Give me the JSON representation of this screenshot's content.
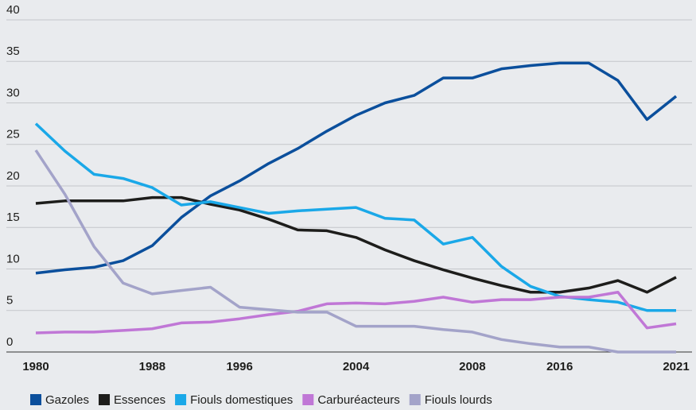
{
  "chart_data": {
    "type": "line",
    "categories": [
      "1980",
      null,
      null,
      null,
      "1988",
      null,
      null,
      "1996",
      null,
      null,
      null,
      "2004",
      null,
      null,
      null,
      "2008",
      null,
      null,
      "2016",
      null,
      null,
      null,
      "2021"
    ],
    "series": [
      {
        "name": "Gazoles",
        "color": "#0b4f9c",
        "values": [
          9.5,
          9.9,
          10.2,
          11,
          12.8,
          16.2,
          18.8,
          20.6,
          22.7,
          24.5,
          26.6,
          28.5,
          30,
          30.9,
          33,
          33,
          34.1,
          34.5,
          34.8,
          34.8,
          32.7,
          28,
          30.8
        ]
      },
      {
        "name": "Essences",
        "color": "#1d1d1b",
        "values": [
          17.9,
          18.2,
          18.2,
          18.2,
          18.6,
          18.6,
          17.8,
          17.1,
          16,
          14.7,
          14.6,
          13.8,
          12.3,
          11,
          9.9,
          8.9,
          8,
          7.2,
          7.2,
          7.7,
          8.6,
          7.2,
          9
        ]
      },
      {
        "name": "Fiouls domestiques",
        "color": "#1aa8e8",
        "values": [
          27.5,
          24.2,
          21.4,
          20.9,
          19.8,
          17.7,
          18.1,
          17.4,
          16.7,
          17,
          17.2,
          17.4,
          16.1,
          15.9,
          13,
          13.8,
          10.3,
          7.9,
          6.7,
          6.3,
          6,
          5,
          5
        ]
      },
      {
        "name": "Carburéacteurs",
        "color": "#c077d6",
        "values": [
          2.3,
          2.4,
          2.4,
          2.6,
          2.8,
          3.5,
          3.6,
          4,
          4.5,
          4.9,
          5.8,
          5.9,
          5.8,
          6.1,
          6.6,
          6,
          6.3,
          6.3,
          6.6,
          6.6,
          7.2,
          2.9,
          3.4
        ]
      },
      {
        "name": "Fiouls lourds",
        "color": "#a3a3c9",
        "values": [
          24.3,
          19,
          12.7,
          8.3,
          7,
          7.4,
          7.8,
          5.4,
          5.1,
          4.8,
          4.8,
          3.1,
          3.1,
          3.1,
          2.7,
          2.4,
          1.5,
          1,
          0.6,
          0.6,
          0,
          0,
          0
        ]
      }
    ],
    "ylim": [
      0,
      40
    ],
    "yticks": [
      0,
      5,
      10,
      15,
      20,
      25,
      30,
      35,
      40
    ],
    "grid": true
  }
}
